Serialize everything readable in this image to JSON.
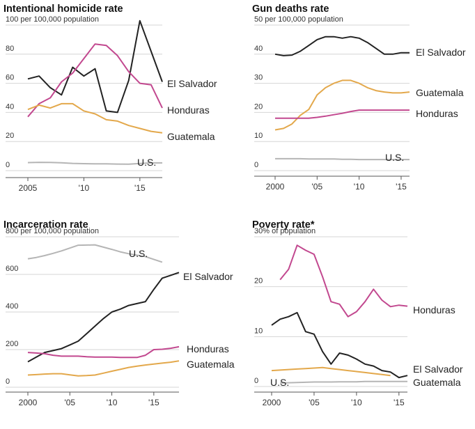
{
  "chart_data": [
    {
      "type": "line",
      "title": "Intentional homicide rate",
      "x": [
        2005,
        2006,
        2007,
        2008,
        2009,
        2010,
        2011,
        2012,
        2013,
        2014,
        2015,
        2016,
        2017
      ],
      "xlim": [
        2005,
        2017
      ],
      "xticks": [
        2005,
        {
          "value": 2010,
          "label": "'10"
        },
        {
          "value": 2015,
          "label": "'15"
        }
      ],
      "ylim": [
        0,
        100
      ],
      "yticks": [
        0,
        20,
        40,
        60,
        80,
        {
          "value": 100,
          "label": "100 per 100,000 population"
        }
      ],
      "grid": true,
      "series": [
        {
          "name": "El Salvador",
          "color": "#222222",
          "values": [
            63,
            65,
            57,
            52,
            71,
            65,
            70,
            41,
            40,
            62,
            103,
            82,
            61
          ]
        },
        {
          "name": "Honduras",
          "color": "#c2488f",
          "values": [
            37,
            46,
            50,
            61,
            67,
            77,
            87,
            86,
            79,
            68,
            60,
            59,
            43
          ]
        },
        {
          "name": "Guatemala",
          "color": "#e3a84b",
          "values": [
            42,
            45,
            43,
            46,
            46,
            41,
            39,
            35,
            34,
            31,
            29,
            27,
            26
          ]
        },
        {
          "name": "U.S.",
          "color": "#b5b5b5",
          "values": [
            5.5,
            5.7,
            5.6,
            5.4,
            5.0,
            4.8,
            4.7,
            4.7,
            4.5,
            4.4,
            4.9,
            5.3,
            5.3
          ]
        }
      ]
    },
    {
      "type": "line",
      "title": "Gun deaths rate",
      "x": [
        2000,
        2001,
        2002,
        2003,
        2004,
        2005,
        2006,
        2007,
        2008,
        2009,
        2010,
        2011,
        2012,
        2013,
        2014,
        2015,
        2016
      ],
      "xlim": [
        2000,
        2016
      ],
      "xticks": [
        2000,
        {
          "value": 2005,
          "label": "'05"
        },
        {
          "value": 2010,
          "label": "'10"
        },
        {
          "value": 2015,
          "label": "'15"
        }
      ],
      "ylim": [
        0,
        50
      ],
      "yticks": [
        0,
        10,
        20,
        30,
        40,
        {
          "value": 50,
          "label": "50 per 100,000 population"
        }
      ],
      "grid": true,
      "series": [
        {
          "name": "El Salvador",
          "color": "#222222",
          "values": [
            40,
            39.5,
            39.7,
            41,
            43,
            45,
            46,
            46,
            45.5,
            46,
            45.5,
            44,
            42,
            40,
            40,
            40.5,
            40.5
          ]
        },
        {
          "name": "Guatemala",
          "color": "#e3a84b",
          "values": [
            14,
            14.5,
            16,
            19,
            21,
            26,
            28.5,
            30,
            31,
            31,
            30,
            28.5,
            27.5,
            27,
            26.7,
            26.7,
            27
          ]
        },
        {
          "name": "Honduras",
          "color": "#c2488f",
          "values": [
            18,
            18,
            18,
            18,
            18,
            18.3,
            18.7,
            19.2,
            19.7,
            20.3,
            20.8,
            20.8,
            20.8,
            20.8,
            20.8,
            20.8,
            20.8
          ]
        },
        {
          "name": "U.S.",
          "color": "#b5b5b5",
          "values": [
            4.1,
            4.1,
            4.1,
            4.1,
            4.0,
            4.0,
            4.0,
            4.0,
            3.9,
            3.9,
            3.8,
            3.8,
            3.8,
            3.8,
            3.8,
            3.8,
            3.8
          ]
        }
      ]
    },
    {
      "type": "line",
      "title": "Incarceration rate",
      "x": [
        2000,
        2001,
        2002,
        2003,
        2004,
        2005,
        2006,
        2007,
        2008,
        2009,
        2010,
        2011,
        2012,
        2013,
        2014,
        2015,
        2016,
        2017,
        2018
      ],
      "xlim": [
        2000,
        2018
      ],
      "xticks": [
        2000,
        {
          "value": 2005,
          "label": "'05"
        },
        {
          "value": 2010,
          "label": "'10"
        },
        {
          "value": 2015,
          "label": "'15"
        }
      ],
      "ylim": [
        0,
        800
      ],
      "yticks": [
        0,
        200,
        400,
        600,
        {
          "value": 800,
          "label": "800 per 100,000 population"
        }
      ],
      "grid": true,
      "series": [
        {
          "name": "U.S.",
          "color": "#b5b5b5",
          "values": [
            683,
            690,
            700,
            712,
            725,
            740,
            755,
            756,
            757,
            745,
            733,
            720,
            710,
            702,
            695,
            680,
            665,
            null,
            null
          ]
        },
        {
          "name": "El Salvador",
          "color": "#222222",
          "values": [
            135,
            160,
            185,
            195,
            205,
            225,
            245,
            285,
            325,
            365,
            400,
            415,
            435,
            445,
            455,
            520,
            580,
            595,
            610
          ]
        },
        {
          "name": "Honduras",
          "color": "#c2488f",
          "values": [
            185,
            182,
            178,
            170,
            165,
            165,
            165,
            162,
            160,
            160,
            160,
            158,
            158,
            158,
            170,
            200,
            202,
            207,
            215
          ]
        },
        {
          "name": "Guatemala",
          "color": "#e3a84b",
          "values": [
            65,
            67,
            70,
            72,
            72,
            66,
            60,
            62,
            65,
            75,
            85,
            95,
            105,
            112,
            118,
            123,
            128,
            133,
            140
          ]
        }
      ]
    },
    {
      "type": "line",
      "title": "Poverty rate*",
      "x": [
        2000,
        2001,
        2002,
        2003,
        2004,
        2005,
        2006,
        2007,
        2008,
        2009,
        2010,
        2011,
        2012,
        2013,
        2014,
        2015,
        2016
      ],
      "xlim": [
        2000,
        2016
      ],
      "xticks": [
        2000,
        {
          "value": 2005,
          "label": "'05"
        },
        {
          "value": 2010,
          "label": "'10"
        },
        {
          "value": 2015,
          "label": "'15"
        }
      ],
      "ylim": [
        0,
        30
      ],
      "yticks": [
        0,
        10,
        20,
        {
          "value": 30,
          "label": "30% of population"
        }
      ],
      "grid": true,
      "series": [
        {
          "name": "Honduras",
          "color": "#c2488f",
          "values": [
            null,
            21.4,
            23.5,
            28.3,
            27.3,
            26.5,
            22,
            17,
            16.5,
            14,
            15,
            17,
            19.5,
            17.3,
            16,
            16.3,
            16.1
          ]
        },
        {
          "name": "El Salvador",
          "color": "#222222",
          "values": [
            12.3,
            13.5,
            14,
            14.8,
            11,
            10.5,
            7,
            4.5,
            6.7,
            6.3,
            5.5,
            4.5,
            4.1,
            3.2,
            2.9,
            1.8,
            2.2
          ]
        },
        {
          "name": "Guatemala",
          "color": "#e3a84b",
          "values": [
            3.2,
            3.3,
            3.4,
            3.5,
            3.6,
            3.7,
            3.8,
            3.6,
            3.4,
            3.2,
            3.0,
            2.8,
            2.6,
            2.4,
            2.2,
            null,
            null
          ]
        },
        {
          "name": "U.S.",
          "color": "#b5b5b5",
          "values": [
            null,
            0.7,
            0.75,
            0.8,
            0.85,
            0.9,
            0.9,
            0.9,
            0.95,
            0.95,
            0.95,
            1.0,
            1.0,
            1.0,
            1.0,
            1.0,
            1.0
          ]
        }
      ]
    }
  ]
}
